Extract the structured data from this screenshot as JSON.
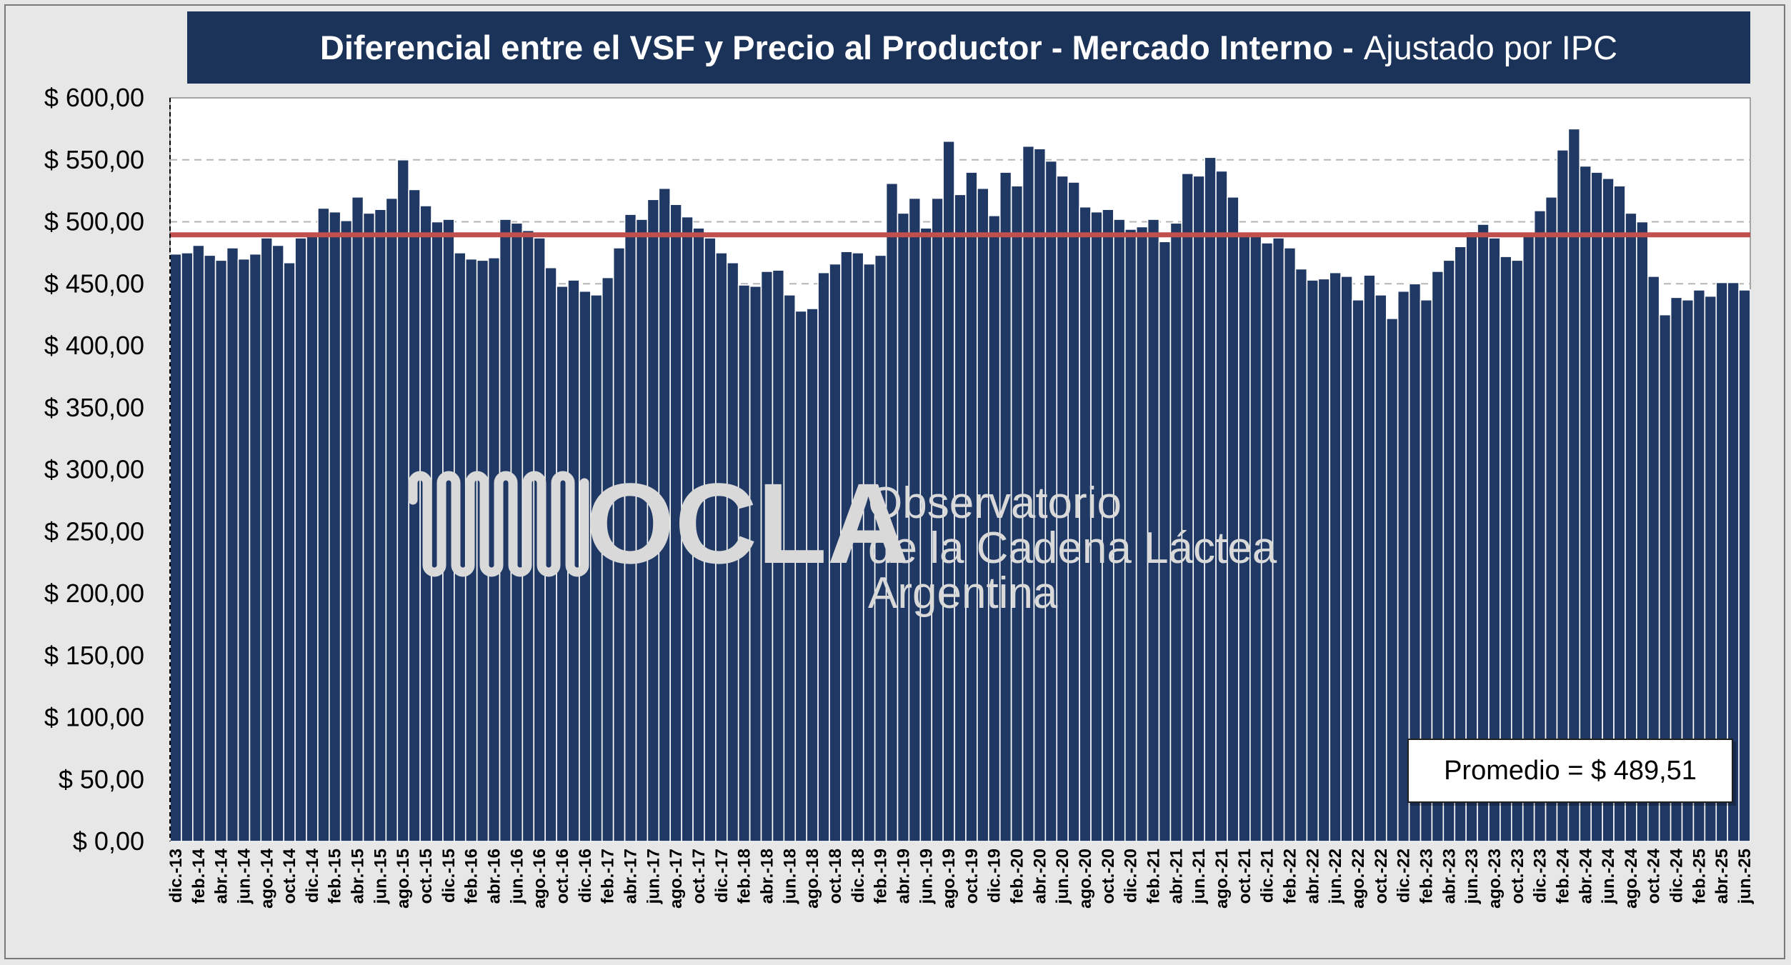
{
  "colors": {
    "bar": "#1f3864",
    "bar_edge": "#ffffff",
    "avg_line": "#c0504d",
    "banner": "#1b3259",
    "grid": "#b5b5b5",
    "logo_mark": "#d9d9d9",
    "background": "#e7e7e7",
    "plot_bg": "#ffffff"
  },
  "title": {
    "main": "Diferencial entre el VSF y Precio al Productor - Mercado Interno -",
    "sub": "Ajustado por IPC"
  },
  "logo": {
    "acronym": "OCLA",
    "line1": "Observatorio",
    "line2": "de la Cadena Láctea",
    "line3": "Argentina"
  },
  "average_label": "Promedio = $ 489,51",
  "chart_data": {
    "type": "bar",
    "title": "Diferencial entre el VSF y Precio al Productor - Mercado Interno - Ajustado por IPC",
    "xlabel": "",
    "ylabel": "",
    "ylim": [
      0,
      600
    ],
    "y_ticks": [
      0,
      50,
      100,
      150,
      200,
      250,
      300,
      350,
      400,
      450,
      500,
      550,
      600
    ],
    "y_tick_labels": [
      "$ 0,00",
      "$ 50,00",
      "$ 100,00",
      "$ 150,00",
      "$ 200,00",
      "$ 250,00",
      "$ 300,00",
      "$ 350,00",
      "$ 400,00",
      "$ 450,00",
      "$ 500,00",
      "$ 550,00",
      "$ 600,00"
    ],
    "grid": "horizontal dashed",
    "average": 489.51,
    "x_tick_labels": [
      "dic.-13",
      "feb.-14",
      "abr.-14",
      "jun.-14",
      "ago.-14",
      "oct.-14",
      "dic.-14",
      "feb.-15",
      "abr.-15",
      "jun.-15",
      "ago.-15",
      "oct.-15",
      "dic.-15",
      "feb.-16",
      "abr.-16",
      "jun.-16",
      "ago.-16",
      "oct.-16",
      "dic.-16",
      "feb.-17",
      "abr.-17",
      "jun.-17",
      "ago.-17",
      "oct.-17",
      "dic.-17",
      "feb.-18",
      "abr.-18",
      "jun.-18",
      "ago.-18",
      "oct.-18",
      "dic.-18",
      "feb.-19",
      "abr.-19",
      "jun.-19",
      "ago.-19",
      "oct.-19",
      "dic.-19",
      "feb.-20",
      "abr.-20",
      "jun.-20",
      "ago.-20",
      "oct.-20",
      "dic.-20",
      "feb.-21",
      "abr.-21",
      "jun.-21",
      "ago.-21",
      "oct.-21",
      "dic.-21",
      "feb.-22",
      "abr.-22",
      "jun.-22",
      "ago.-22",
      "oct.-22",
      "dic.-22",
      "feb.-23",
      "abr.-23",
      "jun.-23",
      "ago.-23",
      "oct.-23",
      "dic.-23",
      "feb.-24",
      "abr.-24",
      "jun.-24",
      "ago.-24",
      "oct.-24",
      "dic.-24",
      "feb.-25",
      "abr.-25",
      "jun.-25"
    ],
    "values": [
      474,
      475,
      481,
      473,
      469,
      479,
      470,
      474,
      487,
      481,
      467,
      487,
      489,
      511,
      508,
      501,
      520,
      507,
      510,
      519,
      550,
      526,
      513,
      500,
      502,
      475,
      470,
      469,
      471,
      502,
      499,
      493,
      487,
      463,
      448,
      453,
      444,
      441,
      455,
      479,
      506,
      502,
      518,
      527,
      514,
      504,
      495,
      487,
      475,
      467,
      449,
      448,
      460,
      461,
      441,
      428,
      430,
      459,
      466,
      476,
      475,
      466,
      473,
      531,
      507,
      519,
      495,
      519,
      565,
      522,
      540,
      527,
      505,
      540,
      529,
      561,
      559,
      549,
      537,
      532,
      512,
      508,
      510,
      502,
      494,
      496,
      502,
      484,
      499,
      539,
      537,
      552,
      541,
      520,
      491,
      490,
      483,
      487,
      479,
      462,
      453,
      454,
      459,
      456,
      437,
      457,
      441,
      422,
      444,
      450,
      437,
      460,
      469,
      480,
      492,
      498,
      487,
      472,
      469,
      489,
      509,
      520,
      558,
      575,
      545,
      540,
      535,
      529,
      507,
      500,
      456,
      425,
      439,
      437,
      445,
      440,
      451,
      451,
      445
    ]
  }
}
